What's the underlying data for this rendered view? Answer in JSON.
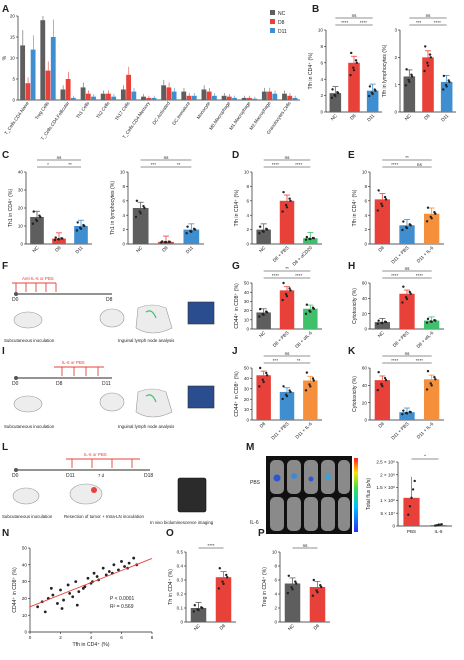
{
  "panel_letters": [
    "A",
    "B",
    "C",
    "D",
    "E",
    "F",
    "G",
    "H",
    "I",
    "J",
    "K",
    "L",
    "M",
    "N",
    "O",
    "P"
  ],
  "colors": {
    "nc": "#5e5e5e",
    "d8": "#e8413a",
    "d11": "#3f8fd0",
    "green": "#3fc06a",
    "orange": "#f58f3c",
    "teal": "#47a9a1"
  },
  "panel_A": {
    "ylabel": "%",
    "legend": [
      "NC",
      "D8",
      "D11"
    ],
    "categories": [
      "T_Cells.CD4.Naive",
      "Treg Cells",
      "T_Cells.CD4.Follicular",
      "Th1 Cells",
      "Th2 Cells",
      "Th17 Cells",
      "T_Cells.CD4.Memory",
      "DC.Activated",
      "DC.Immature",
      "Monocyte",
      "M0.Macrophage",
      "M1.Macrophage",
      "M2.Macrophage",
      "Granulocytes.Cells"
    ]
  },
  "panel_B1": {
    "ylabel": "Tfh in CD4⁺ (%)",
    "cats": [
      "NC",
      "D8",
      "D11"
    ],
    "sig": [
      "ns",
      "****",
      "****"
    ]
  },
  "panel_B2": {
    "ylabel": "Tfh in lymphocytes (%)",
    "cats": [
      "NC",
      "D8",
      "D11"
    ],
    "sig": [
      "ns",
      "***",
      "****"
    ]
  },
  "panel_C1": {
    "ylabel": "Th1 in CD4⁺ (%)",
    "cats": [
      "NC",
      "D8",
      "D11"
    ],
    "sig": [
      "ns",
      "*",
      "**"
    ]
  },
  "panel_C2": {
    "ylabel": "Th1 in lymphocytes (%)",
    "cats": [
      "NC",
      "D8",
      "D11"
    ],
    "sig": [
      "ns",
      "***",
      "**"
    ]
  },
  "panel_D": {
    "ylabel": "Tfh in CD4⁺ (%)",
    "cats": [
      "NC",
      "D8 + PBS",
      "D8 + αCD20"
    ],
    "sig": [
      "ns",
      "****",
      "****"
    ]
  },
  "panel_E": {
    "ylabel": "Tfh in CD4⁺ (%)",
    "cats": [
      "D8",
      "D11 + PBS",
      "D11 + IL-6"
    ],
    "sig": [
      "**",
      "****",
      "ns"
    ]
  },
  "panel_F": {
    "treatment": "Anti-IL-6 or PBS",
    "d0": "D0",
    "d8": "D8",
    "left": "Subcutaneous inoculation",
    "right": "Inguinal lymph node analysis"
  },
  "panel_G": {
    "ylabel": "CD44⁺ in CD8⁺ (%)",
    "cats": [
      "NC",
      "D8 + PBS",
      "D8 + αIL-6"
    ],
    "sig": [
      "**",
      "****",
      "****"
    ]
  },
  "panel_H": {
    "ylabel": "Cytotoxicity (%)",
    "cats": [
      "NC",
      "D8 + PBS",
      "D8 + αIL-6"
    ],
    "sig": [
      "ns",
      "****",
      "****"
    ]
  },
  "panel_I": {
    "treatment": "IL-6 or PBS",
    "d0": "D0",
    "d8": "D8",
    "d11": "D11",
    "left": "Subcutaneous inoculation",
    "right": "Inguinal lymph node analysis"
  },
  "panel_J": {
    "ylabel": "CD44⁺ in CD8⁺ (%)",
    "cats": [
      "D8",
      "D11 + PBS",
      "D11 + IL-6"
    ],
    "sig": [
      "ns",
      "***",
      "**"
    ]
  },
  "panel_K": {
    "ylabel": "Cytotoxicity (%)",
    "cats": [
      "D8",
      "D11 + PBS",
      "D11 + IL-6"
    ],
    "sig": [
      "ns",
      "****",
      "****"
    ]
  },
  "panel_L": {
    "treatment": "IL-6 or PBS",
    "d0": "D0",
    "d11": "D11",
    "d7": "7 d",
    "d18": "D18",
    "left": "Subcutaneous inoculation",
    "mid": "Resection of tumor + Intra-LN inoculation",
    "right": "In vivo bioluminescence imaging"
  },
  "panel_M": {
    "rows": [
      "PBS",
      "IL-6"
    ],
    "ylabel": "Total flux (p/s)",
    "yticks": [
      "0",
      "5 × 10⁷",
      "1 × 10⁸",
      "1.5 × 10⁸",
      "2 × 10⁸",
      "2.5 × 10⁸"
    ],
    "cats": [
      "PBS",
      "IL-6"
    ],
    "sig": "*"
  },
  "panel_N": {
    "ylabel": "CD44⁺ in CD8⁺ (%)",
    "xlabel": "Tfh in CD4⁺ (%)",
    "p": "P < 0.0001",
    "r2": "R² = 0.569"
  },
  "panel_O": {
    "ylabel": "Tfr in CD4⁺ (%)",
    "cats": [
      "NC",
      "D8"
    ],
    "sig": "****"
  },
  "panel_P": {
    "ylabel": "Treg in CD4⁺ (%)",
    "cats": [
      "NC",
      "D8"
    ],
    "sig": "ns"
  },
  "chart_data": [
    {
      "type": "bar",
      "panel": "A",
      "categories": [
        "T_Cells.CD4.Naive",
        "Treg Cells",
        "T_Cells.CD4.Follicular",
        "Th1 Cells",
        "Th2 Cells",
        "Th17 Cells",
        "T_Cells.CD4.Memory",
        "DC.Activated",
        "DC.Immature",
        "Monocyte",
        "M0.Macrophage",
        "M1.Macrophage",
        "M2.Macrophage",
        "Granulocytes.Cells"
      ],
      "series": [
        {
          "name": "NC",
          "values": [
            13,
            19,
            2.5,
            3,
            1.5,
            2.5,
            0.8,
            3.5,
            2,
            2.5,
            1,
            0.5,
            2,
            1.5
          ]
        },
        {
          "name": "D8",
          "values": [
            4,
            7,
            5,
            1.5,
            1.5,
            6,
            0.5,
            3,
            1,
            2,
            0.8,
            0.5,
            2,
            1
          ]
        },
        {
          "name": "D11",
          "values": [
            12,
            15,
            0.5,
            0.8,
            0.8,
            2,
            0.5,
            2,
            1,
            1,
            0.5,
            0.3,
            1.5,
            0.5
          ]
        }
      ],
      "ylim": [
        0,
        20
      ],
      "yticks": [
        0,
        5,
        10,
        15,
        20
      ]
    },
    {
      "type": "bar",
      "panel": "B1",
      "categories": [
        "NC",
        "D8",
        "D11"
      ],
      "values": [
        2.3,
        6,
        2.6
      ],
      "ylim": [
        0,
        10
      ],
      "yticks": [
        0,
        2,
        4,
        6,
        8,
        10
      ]
    },
    {
      "type": "bar",
      "panel": "B2",
      "categories": [
        "NC",
        "D8",
        "D11"
      ],
      "values": [
        1.3,
        2,
        1.1
      ],
      "ylim": [
        0,
        3
      ],
      "yticks": [
        0,
        1,
        2,
        3
      ]
    },
    {
      "type": "bar",
      "panel": "C1",
      "categories": [
        "NC",
        "D8",
        "D11"
      ],
      "values": [
        15,
        3,
        10
      ],
      "ylim": [
        0,
        40
      ],
      "yticks": [
        0,
        10,
        20,
        30,
        40
      ]
    },
    {
      "type": "bar",
      "panel": "C2",
      "categories": [
        "NC",
        "D8",
        "D11"
      ],
      "values": [
        5,
        0.3,
        2
      ],
      "ylim": [
        0,
        10
      ],
      "yticks": [
        0,
        2,
        4,
        6,
        8,
        10
      ]
    },
    {
      "type": "bar",
      "panel": "D",
      "categories": [
        "NC",
        "D8 + PBS",
        "D8 + αCD20"
      ],
      "values": [
        2,
        6,
        0.8
      ],
      "ylim": [
        0,
        10
      ],
      "yticks": [
        0,
        2,
        4,
        6,
        8,
        10
      ]
    },
    {
      "type": "bar",
      "panel": "E",
      "categories": [
        "D8",
        "D11 + PBS",
        "D11 + IL-6"
      ],
      "values": [
        6.2,
        2.6,
        4.2
      ],
      "ylim": [
        0,
        10
      ],
      "yticks": [
        0,
        2,
        4,
        6,
        8,
        10
      ]
    },
    {
      "type": "bar",
      "panel": "G",
      "categories": [
        "NC",
        "D8 + PBS",
        "D8 + αIL-6"
      ],
      "values": [
        18,
        42,
        22
      ],
      "ylim": [
        0,
        50
      ],
      "yticks": [
        0,
        10,
        20,
        30,
        40,
        50
      ]
    },
    {
      "type": "bar",
      "panel": "H",
      "categories": [
        "NC",
        "D8 + PBS",
        "D8 + αIL-6"
      ],
      "values": [
        9,
        46,
        11
      ],
      "ylim": [
        0,
        60
      ],
      "yticks": [
        0,
        20,
        40,
        60
      ]
    },
    {
      "type": "bar",
      "panel": "J",
      "categories": [
        "D8",
        "D11 + PBS",
        "D11 + IL-6"
      ],
      "values": [
        43,
        27,
        38
      ],
      "ylim": [
        0,
        50
      ],
      "yticks": [
        0,
        10,
        20,
        30,
        40,
        50
      ]
    },
    {
      "type": "bar",
      "panel": "K",
      "categories": [
        "D8",
        "D11 + PBS",
        "D11 + IL-6"
      ],
      "values": [
        46,
        9,
        47
      ],
      "ylim": [
        0,
        60
      ],
      "yticks": [
        0,
        20,
        40,
        60
      ]
    },
    {
      "type": "bar",
      "panel": "M",
      "categories": [
        "PBS",
        "IL-6"
      ],
      "values": [
        110000000,
        4000000
      ],
      "ylim": [
        0,
        250000000
      ]
    },
    {
      "type": "scatter",
      "panel": "N",
      "xlim": [
        0,
        8
      ],
      "ylim": [
        0,
        50
      ],
      "xticks": [
        0,
        2,
        4,
        6,
        8
      ],
      "yticks": [
        0,
        10,
        20,
        30,
        40,
        50
      ],
      "x": [
        0.5,
        0.8,
        1,
        1.2,
        1.5,
        1.8,
        2,
        2.2,
        2.5,
        2.8,
        3,
        3.2,
        3.5,
        3.8,
        4,
        4.2,
        4.5,
        4.8,
        5,
        5.2,
        5.5,
        5.8,
        6,
        6.2,
        6.5,
        6.8,
        7,
        1.4,
        2.6,
        3.6,
        4.4,
        5.4,
        6.4,
        2.1,
        3.1,
        4.1
      ],
      "y": [
        15,
        18,
        12,
        20,
        22,
        17,
        25,
        19,
        28,
        21,
        30,
        24,
        26,
        32,
        29,
        35,
        31,
        38,
        34,
        36,
        40,
        37,
        42,
        39,
        41,
        44,
        40,
        26,
        23,
        27,
        33,
        35,
        38,
        14,
        16,
        30
      ],
      "fit": {
        "slope": 3.6,
        "intercept": 15
      }
    },
    {
      "type": "bar",
      "panel": "O",
      "categories": [
        "NC",
        "D8"
      ],
      "values": [
        0.1,
        0.32
      ],
      "ylim": [
        0,
        0.5
      ],
      "yticks": [
        0,
        0.1,
        0.2,
        0.3,
        0.4,
        0.5
      ]
    },
    {
      "type": "bar",
      "panel": "P",
      "categories": [
        "NC",
        "D8"
      ],
      "values": [
        5.5,
        5
      ],
      "ylim": [
        0,
        10
      ],
      "yticks": [
        0,
        2,
        4,
        6,
        8,
        10
      ]
    }
  ]
}
